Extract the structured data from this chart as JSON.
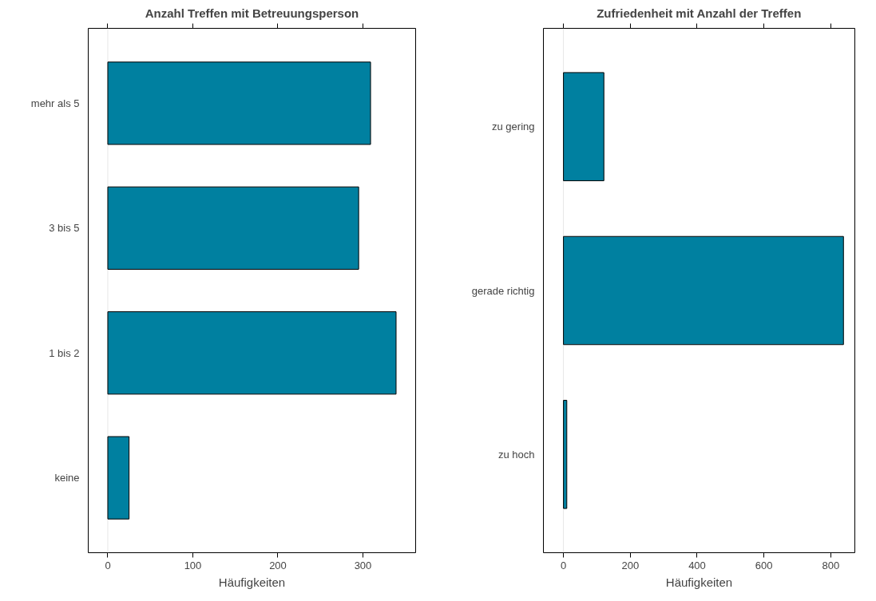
{
  "chart_data": [
    {
      "type": "bar",
      "orientation": "horizontal",
      "title": "Anzahl Treffen mit Betreuungsperson",
      "xlabel": "Häufigkeiten",
      "categories": [
        "mehr als 5",
        "3 bis 5",
        "1 bis 2",
        "keine"
      ],
      "values": [
        309,
        295,
        339,
        25
      ],
      "color": "#0080a0",
      "xlim": [
        -23,
        362
      ],
      "xticks": [
        0,
        100,
        200,
        300
      ],
      "ref_lines": [
        {
          "axis": "x",
          "value": 0,
          "label": null,
          "color": "#e6e6e6"
        }
      ],
      "grid": false,
      "legend": false
    },
    {
      "type": "bar",
      "orientation": "horizontal",
      "title": "Zufriedenheit mit Anzahl der Treffen",
      "xlabel": "Häufigkeiten",
      "categories": [
        "zu gering",
        "gerade richtig",
        "zu hoch"
      ],
      "values": [
        121,
        838,
        10
      ],
      "color": "#0080a0",
      "xlim": [
        -60,
        872
      ],
      "xticks": [
        0,
        200,
        400,
        600,
        800
      ],
      "ref_lines": [
        {
          "axis": "x",
          "value": 0,
          "label": null,
          "color": "#e6e6e6"
        }
      ],
      "grid": false,
      "legend": false
    }
  ]
}
